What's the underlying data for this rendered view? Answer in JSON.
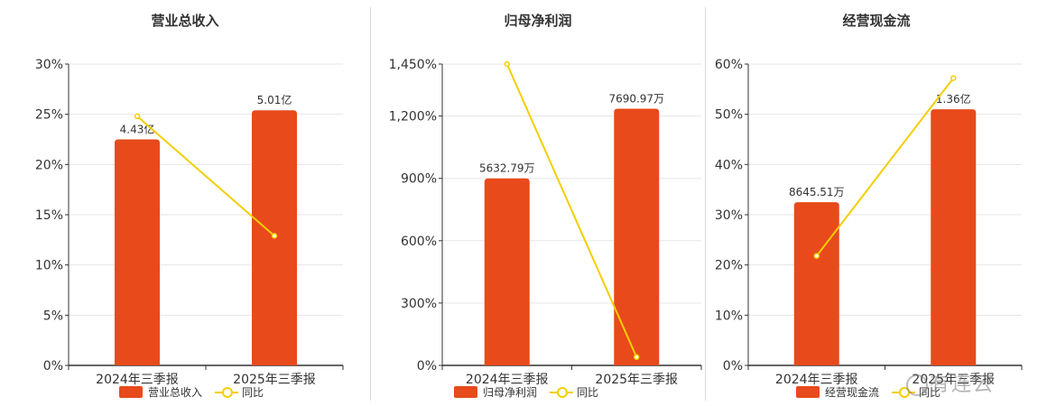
{
  "colors": {
    "bar": "#E84A1B",
    "line": "#F5CE00",
    "grid": "#e6e6e6",
    "axis": "#333333"
  },
  "watermark": "有连云",
  "chart_data": [
    {
      "type": "bar",
      "title": "营业总收入",
      "categories": [
        "2024年三季报",
        "2025年三季报"
      ],
      "series": [
        {
          "name": "营业总收入",
          "type": "bar",
          "values": [
            22.5,
            25.4
          ],
          "labels": [
            "4.43亿",
            "5.01亿"
          ]
        },
        {
          "name": "同比",
          "type": "line",
          "values": [
            24.8,
            12.9
          ]
        }
      ],
      "yticks": [
        "0%",
        "5%",
        "10%",
        "15%",
        "20%",
        "25%",
        "30%"
      ],
      "ylim": [
        0,
        30
      ],
      "grid": true,
      "legend": "bottom"
    },
    {
      "type": "bar",
      "title": "归母净利润",
      "categories": [
        "2024年三季报",
        "2025年三季报"
      ],
      "series": [
        {
          "name": "归母净利润",
          "type": "bar",
          "values": [
            900,
            1235
          ],
          "labels": [
            "5632.79万",
            "7690.97万"
          ]
        },
        {
          "name": "同比",
          "type": "line",
          "values": [
            1450,
            40
          ]
        }
      ],
      "yticks": [
        "0%",
        "300%",
        "600%",
        "900%",
        "1,200%",
        "1,450%"
      ],
      "ylim": [
        0,
        1450
      ],
      "grid": true,
      "legend": "bottom"
    },
    {
      "type": "bar",
      "title": "经营现金流",
      "categories": [
        "2024年三季报",
        "2025年三季报"
      ],
      "series": [
        {
          "name": "经营现金流",
          "type": "bar",
          "values": [
            32.5,
            51.0
          ],
          "labels": [
            "8645.51万",
            "1.36亿"
          ]
        },
        {
          "name": "同比",
          "type": "line",
          "values": [
            21.8,
            57.2
          ]
        }
      ],
      "yticks": [
        "0%",
        "10%",
        "20%",
        "30%",
        "40%",
        "50%",
        "60%"
      ],
      "ylim": [
        0,
        60
      ],
      "grid": true,
      "legend": "bottom"
    }
  ]
}
